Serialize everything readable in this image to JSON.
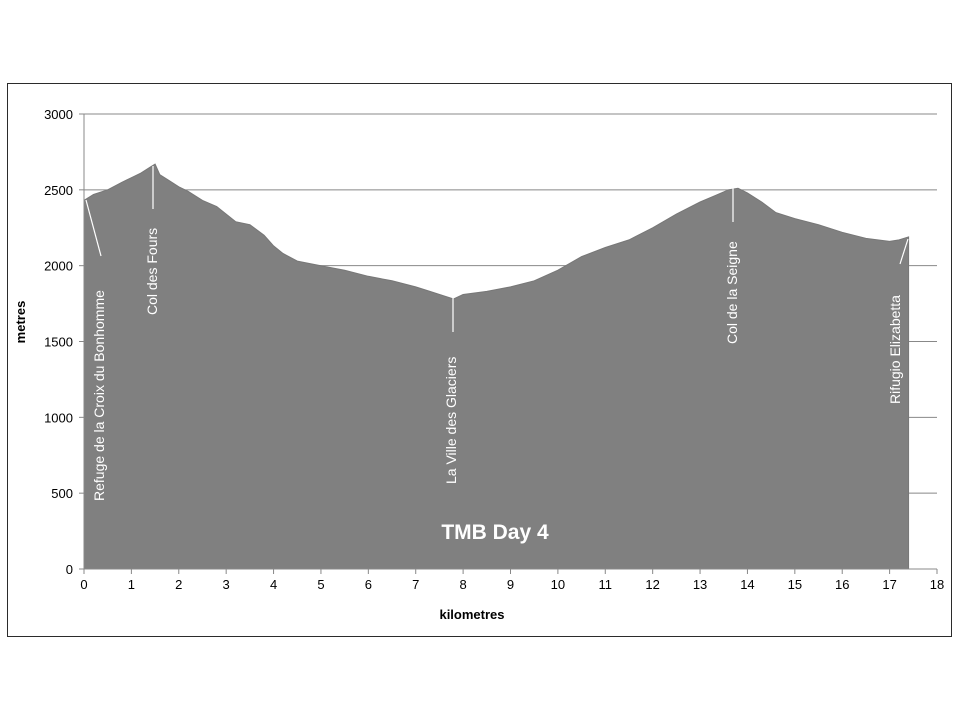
{
  "chart_data": {
    "type": "area",
    "title": "TMB Day 4",
    "xlabel": "kilometres",
    "ylabel": "metres",
    "xlim": [
      0,
      18
    ],
    "ylim": [
      0,
      3000
    ],
    "x_ticks": [
      0,
      1,
      2,
      3,
      4,
      5,
      6,
      7,
      8,
      9,
      10,
      11,
      12,
      13,
      14,
      15,
      16,
      17,
      18
    ],
    "y_ticks": [
      0,
      500,
      1000,
      1500,
      2000,
      2500,
      3000
    ],
    "grid": "horizontal",
    "fill_color": "#808080",
    "series": [
      {
        "x": [
          0,
          0.2,
          0.5,
          0.8,
          1.0,
          1.2,
          1.4,
          1.5,
          1.6,
          1.8,
          2.0,
          2.2,
          2.5,
          2.8,
          3.0,
          3.2,
          3.5,
          3.8,
          4.0,
          4.2,
          4.5,
          5.0,
          5.5,
          6.0,
          6.5,
          7.0,
          7.3,
          7.6,
          7.8,
          8.0,
          8.5,
          9.0,
          9.5,
          10.0,
          10.5,
          11.0,
          11.5,
          12.0,
          12.5,
          13.0,
          13.3,
          13.6,
          13.8,
          14.0,
          14.3,
          14.6,
          15.0,
          15.5,
          16.0,
          16.5,
          17.0,
          17.2,
          17.4
        ],
        "y": [
          2430,
          2470,
          2500,
          2550,
          2580,
          2610,
          2650,
          2670,
          2600,
          2560,
          2520,
          2490,
          2430,
          2390,
          2340,
          2290,
          2270,
          2200,
          2130,
          2080,
          2030,
          2000,
          1970,
          1930,
          1900,
          1860,
          1830,
          1800,
          1780,
          1810,
          1830,
          1860,
          1900,
          1970,
          2060,
          2120,
          2170,
          2250,
          2340,
          2420,
          2460,
          2500,
          2510,
          2480,
          2420,
          2350,
          2310,
          2270,
          2220,
          2180,
          2160,
          2170,
          2190
        ]
      }
    ],
    "annotations": [
      {
        "text": "Refuge de la Croix du Bonhomme",
        "x": 0,
        "y": 2430
      },
      {
        "text": "Col des Fours",
        "x": 1.5,
        "y": 2670
      },
      {
        "text": "La Ville des Glaciers",
        "x": 7.8,
        "y": 1780
      },
      {
        "text": "Col de la Seigne",
        "x": 13.7,
        "y": 2510
      },
      {
        "text": "Rifugio Elizabetta",
        "x": 17.4,
        "y": 2190
      }
    ]
  }
}
